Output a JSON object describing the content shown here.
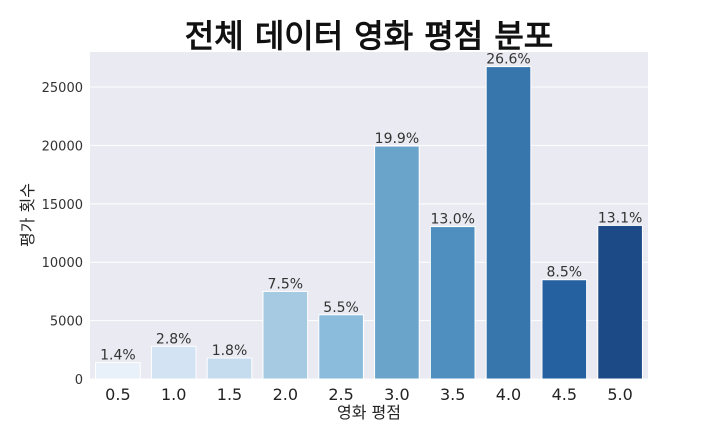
{
  "chart_data": {
    "type": "bar",
    "title": "전체 데이터 영화 평점 분포",
    "xlabel": "영화 평점",
    "ylabel": "평가 횟수",
    "categories": [
      "0.5",
      "1.0",
      "1.5",
      "2.0",
      "2.5",
      "3.0",
      "3.5",
      "4.0",
      "4.5",
      "5.0"
    ],
    "values": [
      1400,
      2800,
      1800,
      7500,
      5500,
      19950,
      13050,
      26750,
      8500,
      13150
    ],
    "data_labels": [
      "1.4%",
      "2.8%",
      "1.8%",
      "7.5%",
      "5.5%",
      "19.9%",
      "13.0%",
      "26.6%",
      "8.5%",
      "13.1%"
    ],
    "colors": [
      "#e8f0f9",
      "#d3e3f3",
      "#c5dbee",
      "#a7cae3",
      "#8bbcdc",
      "#6aa4cb",
      "#4e8fbf",
      "#3776ad",
      "#2561a0",
      "#1c4a86"
    ],
    "yticks": [
      0,
      5000,
      10000,
      15000,
      20000,
      25000
    ],
    "ylim": [
      0,
      28000
    ],
    "grid": true,
    "plot_background": "#eaeaf2",
    "grid_color": "#ffffff"
  }
}
